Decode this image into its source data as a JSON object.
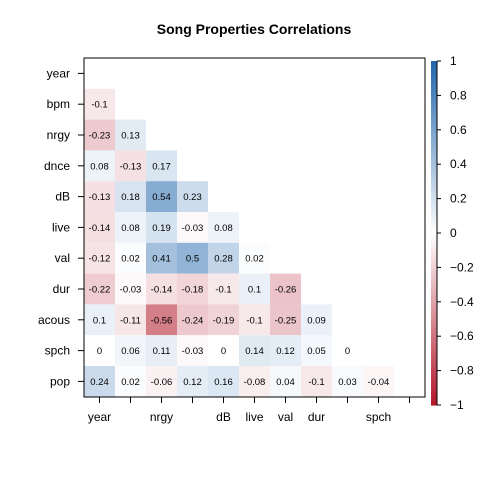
{
  "chart_data": {
    "type": "heatmap",
    "title": "Song Properties Correlations",
    "variables": [
      "year",
      "bpm",
      "nrgy",
      "dnce",
      "dB",
      "live",
      "val",
      "dur",
      "acous",
      "spch",
      "pop"
    ],
    "x_tick_labels": [
      "year",
      "",
      "nrgy",
      "",
      "dB",
      "live",
      "val",
      "dur",
      "",
      "spch",
      ""
    ],
    "matrix_lower": [
      [],
      [
        -0.1
      ],
      [
        -0.23,
        0.13
      ],
      [
        0.08,
        -0.13,
        0.17
      ],
      [
        -0.13,
        0.18,
        0.54,
        0.23
      ],
      [
        -0.14,
        0.08,
        0.19,
        -0.03,
        0.08
      ],
      [
        -0.12,
        0.02,
        0.41,
        0.5,
        0.28,
        0.02
      ],
      [
        -0.22,
        -0.03,
        -0.14,
        -0.18,
        -0.1,
        0.1,
        -0.26
      ],
      [
        0.1,
        -0.11,
        -0.56,
        -0.24,
        -0.19,
        -0.1,
        -0.25,
        0.09
      ],
      [
        0,
        0.06,
        0.11,
        -0.03,
        0,
        0.14,
        0.12,
        0.05,
        0
      ],
      [
        0.24,
        0.02,
        -0.06,
        0.12,
        0.16,
        -0.08,
        0.04,
        -0.1,
        0.03,
        -0.04
      ]
    ],
    "colorbar": {
      "range": [
        -1,
        1
      ],
      "ticks": [
        1,
        0.8,
        0.6,
        0.4,
        0.2,
        0,
        -0.2,
        -0.4,
        -0.6,
        -0.8,
        -1
      ],
      "tick_labels": [
        "1",
        "0.8",
        "0.6",
        "0.4",
        "0.2",
        "0",
        "−0.2",
        "−0.4",
        "−0.6",
        "−0.8",
        "−1"
      ],
      "position": "right"
    },
    "colors": {
      "negative": "#b2182b",
      "neutral": "#ffffff",
      "positive": "#2166ac"
    }
  }
}
